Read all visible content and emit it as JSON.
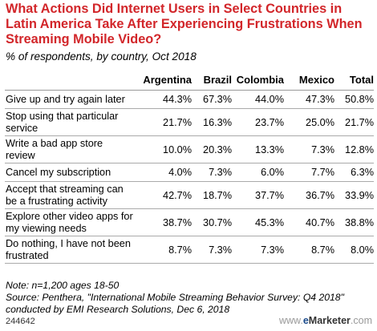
{
  "title": "What Actions Did Internet Users in Select Countries in Latin America Take After Experiencing Frustrations When Streaming Mobile Video?",
  "subtitle": "% of respondents, by country, Oct 2018",
  "chart_data": {
    "type": "table",
    "columns": [
      "Argentina",
      "Brazil",
      "Colombia",
      "Mexico",
      "Total"
    ],
    "rows": [
      {
        "label": "Give up and try again later",
        "values": [
          "44.3%",
          "67.3%",
          "44.0%",
          "47.3%",
          "50.8%"
        ]
      },
      {
        "label": "Stop using that particular service",
        "values": [
          "21.7%",
          "16.3%",
          "23.7%",
          "25.0%",
          "21.7%"
        ]
      },
      {
        "label": "Write a bad app store review",
        "values": [
          "10.0%",
          "20.3%",
          "13.3%",
          "7.3%",
          "12.8%"
        ]
      },
      {
        "label": "Cancel my subscription",
        "values": [
          "4.0%",
          "7.3%",
          "6.0%",
          "7.7%",
          "6.3%"
        ]
      },
      {
        "label": "Accept that streaming can be a frustrating activity",
        "values": [
          "42.7%",
          "18.7%",
          "37.7%",
          "36.7%",
          "33.9%"
        ]
      },
      {
        "label": "Explore other video apps for my viewing needs",
        "values": [
          "38.7%",
          "30.7%",
          "45.3%",
          "40.7%",
          "38.8%"
        ]
      },
      {
        "label": "Do nothing, I have not been frustrated",
        "values": [
          "8.7%",
          "7.3%",
          "7.3%",
          "8.7%",
          "8.0%"
        ]
      }
    ]
  },
  "note": "Note: n=1,200 ages 18-50",
  "source": "Source: Penthera, \"International Mobile Streaming Behavior Survey: Q4 2018\" conducted by EMI Research Solutions, Dec 6, 2018",
  "chart_id": "244642",
  "brand": {
    "prefix": "www.",
    "e": "e",
    "marketer": "Marketer",
    "suffix": ".com"
  }
}
